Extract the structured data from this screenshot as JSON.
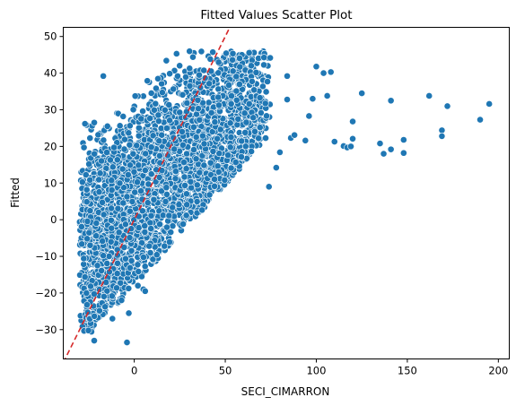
{
  "chart_data": {
    "type": "scatter",
    "title": "Fitted Values Scatter Plot",
    "xlabel": "SECI_CIMARRON",
    "ylabel": "Fitted",
    "xlim": [
      -39,
      206
    ],
    "ylim": [
      -38,
      52.5
    ],
    "xticks": [
      0,
      50,
      100,
      150,
      200
    ],
    "yticks": [
      -30,
      -20,
      -10,
      0,
      10,
      20,
      30,
      40,
      50
    ],
    "grid": false,
    "legend": "none",
    "point_color": "#1f77b4",
    "reference_line": {
      "slope": 1,
      "intercept": 0,
      "color": "#d62728",
      "style": "dashed"
    },
    "cloud": {
      "x_range": [
        -30,
        75
      ],
      "y_range": [
        -34,
        48
      ],
      "count": 3000
    },
    "outliers": [
      {
        "x": 100,
        "y": 41.8
      },
      {
        "x": 104,
        "y": 40
      },
      {
        "x": 108,
        "y": 40.3
      },
      {
        "x": 125,
        "y": 34.5
      },
      {
        "x": 141,
        "y": 32.5
      },
      {
        "x": 162,
        "y": 33.8
      },
      {
        "x": 172,
        "y": 31
      },
      {
        "x": 195,
        "y": 31.6
      },
      {
        "x": 190,
        "y": 27.3
      },
      {
        "x": 169,
        "y": 24.4
      },
      {
        "x": 169,
        "y": 22.8
      },
      {
        "x": 148,
        "y": 21.8
      },
      {
        "x": 135,
        "y": 20.8
      },
      {
        "x": 141,
        "y": 19.2
      },
      {
        "x": 137,
        "y": 18
      },
      {
        "x": 148,
        "y": 18.2
      },
      {
        "x": 120,
        "y": 26.8
      },
      {
        "x": 120,
        "y": 22.1
      },
      {
        "x": 110,
        "y": 21.3
      },
      {
        "x": 115,
        "y": 20.1
      },
      {
        "x": 117,
        "y": 19.7
      },
      {
        "x": 119,
        "y": 20
      },
      {
        "x": 96,
        "y": 28.3
      },
      {
        "x": 98,
        "y": 33
      },
      {
        "x": 106,
        "y": 33.8
      },
      {
        "x": 84,
        "y": 39.2
      },
      {
        "x": 84,
        "y": 32.8
      },
      {
        "x": 86,
        "y": 22.3
      },
      {
        "x": 88,
        "y": 23.1
      },
      {
        "x": 94,
        "y": 21.6
      },
      {
        "x": 80,
        "y": 18.4
      },
      {
        "x": 78,
        "y": 14.2
      },
      {
        "x": 74,
        "y": 9
      },
      {
        "x": -17,
        "y": 39.2
      },
      {
        "x": -22,
        "y": -33
      },
      {
        "x": -4,
        "y": -33.5
      },
      {
        "x": -12,
        "y": -27
      },
      {
        "x": -7,
        "y": -22
      },
      {
        "x": -3,
        "y": -25.5
      },
      {
        "x": 2,
        "y": -18
      },
      {
        "x": 5,
        "y": -19
      },
      {
        "x": 6,
        "y": -19.5
      }
    ]
  }
}
